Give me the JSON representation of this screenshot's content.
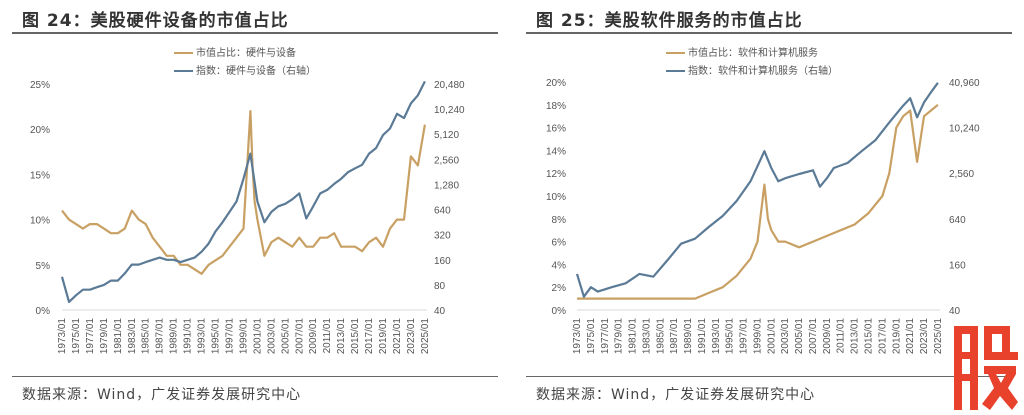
{
  "logo": {
    "text": "股",
    "color": "#e8412c"
  },
  "colors": {
    "share": "#c9a063",
    "index": "#5b7a96"
  },
  "chart_data": [
    {
      "type": "line",
      "title": "图 24：美股硬件设备的市值占比",
      "source": "数据来源：Wind，广发证券发展研究中心",
      "legend": [
        "市值占比：硬件与设备",
        "指数：硬件与设备（右轴）"
      ],
      "legend_placement": "top-center",
      "xlabel": "",
      "ylabel": "",
      "x_ticks": [
        "1973/01",
        "1975/01",
        "1977/01",
        "1979/01",
        "1981/01",
        "1983/01",
        "1985/01",
        "1987/01",
        "1989/01",
        "1991/01",
        "1993/01",
        "1995/01",
        "1997/01",
        "1999/01",
        "2001/01",
        "2003/01",
        "2005/01",
        "2007/01",
        "2009/01",
        "2011/01",
        "2013/01",
        "2015/01",
        "2017/01",
        "2019/01",
        "2021/01",
        "2023/01",
        "2025/01"
      ],
      "xlim": [
        1973,
        2025.3
      ],
      "y_left": {
        "ticks": [
          "0%",
          "5%",
          "10%",
          "15%",
          "20%",
          "25%"
        ],
        "ylim": [
          0,
          25
        ],
        "unit": "%"
      },
      "y_right": {
        "ticks": [
          "40",
          "80",
          "160",
          "320",
          "640",
          "1,280",
          "2,560",
          "5,120",
          "10,240",
          "20,480"
        ],
        "ylim": [
          40,
          20480
        ],
        "scale": "log2"
      },
      "series": [
        {
          "name": "市值占比：硬件与设备",
          "axis": "left",
          "x": [
            1973,
            1974,
            1975,
            1976,
            1977,
            1978,
            1979,
            1980,
            1981,
            1982,
            1983,
            1984,
            1985,
            1986,
            1987,
            1988,
            1989,
            1990,
            1991,
            1992,
            1993,
            1994,
            1995,
            1996,
            1997,
            1998,
            1999,
            2000,
            2000.3,
            2000.6,
            2001,
            2002,
            2003,
            2004,
            2005,
            2006,
            2007,
            2008,
            2009,
            2010,
            2011,
            2012,
            2013,
            2014,
            2015,
            2016,
            2017,
            2018,
            2019,
            2020,
            2021,
            2022,
            2023,
            2024,
            2025
          ],
          "values": [
            11,
            10,
            9.5,
            9,
            9.5,
            9.5,
            9,
            8.5,
            8.5,
            9,
            11,
            10,
            9.5,
            8,
            7,
            6,
            6,
            5,
            5,
            4.5,
            4,
            5,
            5.5,
            6,
            7,
            8,
            9,
            22,
            16,
            12,
            10,
            6,
            7.5,
            8,
            7.5,
            7,
            8,
            7,
            7,
            8,
            8,
            8.5,
            7,
            7,
            7,
            6.5,
            7.5,
            8,
            7,
            9,
            10,
            10,
            17,
            16,
            20.5
          ]
        },
        {
          "name": "指数：硬件与设备（右轴）",
          "axis": "right",
          "x": [
            1973,
            1974,
            1975,
            1976,
            1977,
            1978,
            1979,
            1980,
            1981,
            1982,
            1983,
            1984,
            1985,
            1986,
            1987,
            1988,
            1989,
            1990,
            1991,
            1992,
            1993,
            1994,
            1995,
            1996,
            1997,
            1998,
            1999,
            2000,
            2001,
            2002,
            2003,
            2004,
            2005,
            2006,
            2007,
            2008,
            2009,
            2010,
            2011,
            2012,
            2013,
            2014,
            2015,
            2016,
            2017,
            2018,
            2019,
            2020,
            2021,
            2022,
            2023,
            2024,
            2025
          ],
          "values": [
            100,
            50,
            60,
            70,
            70,
            75,
            80,
            90,
            90,
            110,
            140,
            140,
            150,
            160,
            170,
            160,
            160,
            150,
            160,
            170,
            200,
            250,
            350,
            450,
            600,
            800,
            1500,
            3000,
            800,
            450,
            600,
            700,
            750,
            850,
            1000,
            500,
            700,
            1000,
            1100,
            1300,
            1500,
            1800,
            2000,
            2200,
            3000,
            3500,
            5000,
            6000,
            9000,
            8000,
            12000,
            15000,
            22000
          ]
        }
      ]
    },
    {
      "type": "line",
      "title": "图 25：美股软件服务的市值占比",
      "source": "数据来源：Wind，广发证券发展研究中心",
      "legend": [
        "市值占比：软件和计算机服务",
        "指数：软件和计算机服务（右轴）"
      ],
      "legend_placement": "top-center",
      "xlabel": "",
      "ylabel": "",
      "x_ticks": [
        "1973/01",
        "1975/01",
        "1977/01",
        "1979/01",
        "1981/01",
        "1983/01",
        "1985/01",
        "1987/01",
        "1989/01",
        "1991/01",
        "1993/01",
        "1995/01",
        "1997/01",
        "1999/01",
        "2001/01",
        "2003/01",
        "2005/01",
        "2007/01",
        "2009/01",
        "2011/01",
        "2013/01",
        "2015/01",
        "2017/01",
        "2019/01",
        "2021/01",
        "2023/01",
        "2025/01"
      ],
      "xlim": [
        1973,
        2025.3
      ],
      "y_left": {
        "ticks": [
          "0%",
          "2%",
          "4%",
          "6%",
          "8%",
          "10%",
          "12%",
          "14%",
          "16%",
          "18%",
          "20%"
        ],
        "ylim": [
          0,
          20
        ],
        "unit": "%"
      },
      "y_right": {
        "ticks": [
          "40",
          "160",
          "640",
          "2,560",
          "10,240",
          "40,960"
        ],
        "ylim": [
          40,
          40960
        ],
        "scale": "log2"
      },
      "series": [
        {
          "name": "市值占比：软件和计算机服务",
          "axis": "left",
          "x": [
            1973,
            1976,
            1979,
            1982,
            1985,
            1988,
            1990,
            1992,
            1994,
            1996,
            1998,
            1999,
            2000,
            2000.5,
            2001,
            2002,
            2003,
            2005,
            2007,
            2009,
            2011,
            2013,
            2015,
            2017,
            2018,
            2019,
            2020,
            2021,
            2022,
            2023,
            2024,
            2025
          ],
          "values": [
            1,
            1,
            1,
            1,
            1,
            1,
            1,
            1.5,
            2,
            3,
            4.5,
            6,
            11,
            8,
            7,
            6,
            6,
            5.5,
            6,
            6.5,
            7,
            7.5,
            8.5,
            10,
            12,
            16,
            17,
            17.5,
            13,
            17,
            17.5,
            18
          ]
        },
        {
          "name": "指数：软件和计算机服务（右轴）",
          "axis": "right",
          "x": [
            1973,
            1974,
            1975,
            1976,
            1978,
            1980,
            1982,
            1984,
            1986,
            1988,
            1990,
            1992,
            1994,
            1996,
            1998,
            2000,
            2001,
            2002,
            2003,
            2005,
            2007,
            2008,
            2009,
            2010,
            2012,
            2014,
            2016,
            2018,
            2020,
            2021,
            2022,
            2023,
            2024,
            2025
          ],
          "values": [
            120,
            60,
            80,
            70,
            80,
            90,
            120,
            110,
            180,
            300,
            350,
            500,
            700,
            1100,
            2000,
            5000,
            3000,
            2000,
            2200,
            2500,
            2800,
            1700,
            2200,
            3000,
            3500,
            5000,
            7000,
            12000,
            20000,
            25000,
            14000,
            22000,
            30000,
            40000
          ]
        }
      ]
    }
  ]
}
